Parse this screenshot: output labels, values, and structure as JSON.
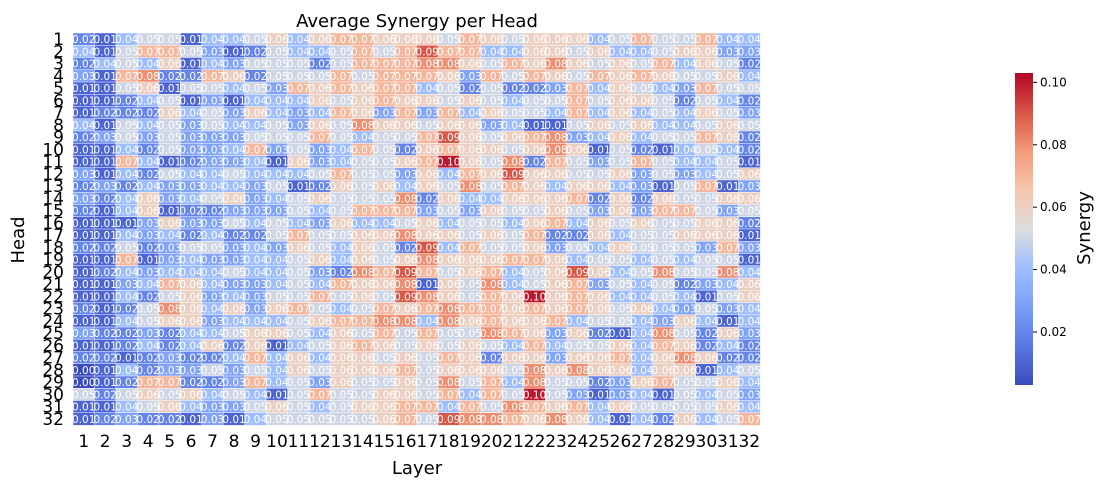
{
  "chart_data": {
    "type": "heatmap",
    "title": "Average Synergy per Head",
    "xlabel": "Layer",
    "ylabel": "Head",
    "colorbar_label": "Synergy",
    "colormap": "coolwarm",
    "vmin": 0.003,
    "vmax": 0.103,
    "colorbar_ticks": [
      "0.02",
      "0.04",
      "0.06",
      "0.08",
      "0.10"
    ],
    "colorbar_tick_values": [
      0.02,
      0.04,
      0.06,
      0.08,
      0.1
    ],
    "x_categories": [
      "1",
      "2",
      "3",
      "4",
      "5",
      "6",
      "7",
      "8",
      "9",
      "10",
      "11",
      "12",
      "13",
      "14",
      "15",
      "16",
      "17",
      "18",
      "19",
      "20",
      "21",
      "22",
      "23",
      "24",
      "25",
      "26",
      "27",
      "28",
      "29",
      "30",
      "31",
      "32"
    ],
    "y_categories": [
      "1",
      "2",
      "3",
      "4",
      "5",
      "6",
      "7",
      "8",
      "9",
      "10",
      "11",
      "12",
      "13",
      "14",
      "15",
      "16",
      "17",
      "18",
      "19",
      "20",
      "21",
      "22",
      "23",
      "24",
      "25",
      "26",
      "27",
      "28",
      "29",
      "30",
      "31",
      "32"
    ],
    "values": [
      [
        0.02,
        0.01,
        0.04,
        0.05,
        0.05,
        0.01,
        0.04,
        0.04,
        0.05,
        0.06,
        0.04,
        0.06,
        0.07,
        0.07,
        0.06,
        0.06,
        0.06,
        0.05,
        0.07,
        0.06,
        0.05,
        0.06,
        0.06,
        0.06,
        0.04,
        0.05,
        0.07,
        0.05,
        0.05,
        0.07,
        0.04,
        0.04
      ],
      [
        0.04,
        0.01,
        0.05,
        0.07,
        0.07,
        0.05,
        0.03,
        0.01,
        0.02,
        0.05,
        0.04,
        0.04,
        0.05,
        0.07,
        0.05,
        0.07,
        0.09,
        0.07,
        0.07,
        0.04,
        0.04,
        0.06,
        0.06,
        0.05,
        0.06,
        0.04,
        0.04,
        0.05,
        0.06,
        0.06,
        0.03,
        0.03
      ],
      [
        0.02,
        0.04,
        0.05,
        0.04,
        0.06,
        0.01,
        0.04,
        0.03,
        0.05,
        0.05,
        0.05,
        0.02,
        0.05,
        0.07,
        0.07,
        0.07,
        0.08,
        0.08,
        0.06,
        0.05,
        0.07,
        0.06,
        0.08,
        0.06,
        0.05,
        0.06,
        0.05,
        0.07,
        0.04,
        0.06,
        0.05,
        0.02
      ],
      [
        0.03,
        0.01,
        0.07,
        0.08,
        0.02,
        0.02,
        0.07,
        0.06,
        0.02,
        0.05,
        0.05,
        0.05,
        0.07,
        0.05,
        0.07,
        0.07,
        0.07,
        0.06,
        0.03,
        0.07,
        0.05,
        0.07,
        0.06,
        0.05,
        0.07,
        0.06,
        0.07,
        0.06,
        0.05,
        0.05,
        0.06,
        0.04
      ],
      [
        0.01,
        0.01,
        0.05,
        0.06,
        0.01,
        0.05,
        0.05,
        0.04,
        0.05,
        0.03,
        0.07,
        0.06,
        0.07,
        0.06,
        0.07,
        0.07,
        0.04,
        0.05,
        0.02,
        0.05,
        0.02,
        0.02,
        0.03,
        0.07,
        0.04,
        0.06,
        0.05,
        0.04,
        0.03,
        0.07,
        0.05,
        0.05
      ],
      [
        0.01,
        0.01,
        0.02,
        0.04,
        0.05,
        0.01,
        0.03,
        0.01,
        0.04,
        0.04,
        0.04,
        0.06,
        0.05,
        0.06,
        0.07,
        0.06,
        0.06,
        0.05,
        0.06,
        0.05,
        0.04,
        0.05,
        0.05,
        0.07,
        0.05,
        0.06,
        0.06,
        0.05,
        0.02,
        0.05,
        0.04,
        0.02
      ],
      [
        0.01,
        0.02,
        0.02,
        0.02,
        0.06,
        0.04,
        0.05,
        0.03,
        0.06,
        0.04,
        0.03,
        0.04,
        0.07,
        0.06,
        0.03,
        0.07,
        0.03,
        0.07,
        0.04,
        0.06,
        0.05,
        0.05,
        0.04,
        0.07,
        0.04,
        0.06,
        0.04,
        0.05,
        0.04,
        0.06,
        0.05,
        0.03
      ],
      [
        0.04,
        0.01,
        0.05,
        0.04,
        0.05,
        0.03,
        0.05,
        0.04,
        0.04,
        0.05,
        0.03,
        0.06,
        0.05,
        0.08,
        0.06,
        0.06,
        0.05,
        0.06,
        0.06,
        0.03,
        0.04,
        0.01,
        0.01,
        0.05,
        0.06,
        0.05,
        0.06,
        0.04,
        0.04,
        0.05,
        0.06,
        0.05
      ],
      [
        0.02,
        0.03,
        0.05,
        0.03,
        0.05,
        0.03,
        0.03,
        0.03,
        0.05,
        0.05,
        0.05,
        0.07,
        0.05,
        0.04,
        0.05,
        0.05,
        0.07,
        0.09,
        0.06,
        0.05,
        0.06,
        0.07,
        0.08,
        0.03,
        0.04,
        0.06,
        0.04,
        0.05,
        0.05,
        0.07,
        0.06,
        0.02
      ],
      [
        0.01,
        0.01,
        0.04,
        0.02,
        0.05,
        0.03,
        0.03,
        0.04,
        0.07,
        0.03,
        0.05,
        0.03,
        0.04,
        0.07,
        0.05,
        0.02,
        0.06,
        0.07,
        0.06,
        0.06,
        0.05,
        0.06,
        0.08,
        0.06,
        0.01,
        0.05,
        0.02,
        0.01,
        0.04,
        0.05,
        0.04,
        0.02
      ],
      [
        0.01,
        0.01,
        0.07,
        0.04,
        0.01,
        0.02,
        0.03,
        0.03,
        0.04,
        0.01,
        0.06,
        0.03,
        0.04,
        0.05,
        0.05,
        0.06,
        0.07,
        0.1,
        0.06,
        0.05,
        0.08,
        0.02,
        0.07,
        0.05,
        0.03,
        0.05,
        0.07,
        0.05,
        0.04,
        0.04,
        0.05,
        0.01
      ],
      [
        0.03,
        0.01,
        0.04,
        0.02,
        0.05,
        0.04,
        0.04,
        0.05,
        0.04,
        0.04,
        0.04,
        0.05,
        0.07,
        0.05,
        0.05,
        0.03,
        0.06,
        0.04,
        0.07,
        0.06,
        0.09,
        0.06,
        0.06,
        0.05,
        0.05,
        0.06,
        0.03,
        0.05,
        0.03,
        0.04,
        0.05,
        0.06
      ],
      [
        0.02,
        0.03,
        0.02,
        0.04,
        0.03,
        0.03,
        0.04,
        0.04,
        0.03,
        0.05,
        0.01,
        0.02,
        0.06,
        0.05,
        0.06,
        0.04,
        0.06,
        0.05,
        0.08,
        0.05,
        0.07,
        0.06,
        0.04,
        0.06,
        0.06,
        0.04,
        0.03,
        0.01,
        0.05,
        0.07,
        0.01,
        0.03
      ],
      [
        0.03,
        0.02,
        0.04,
        0.06,
        0.03,
        0.04,
        0.05,
        0.06,
        0.03,
        0.04,
        0.05,
        0.06,
        0.05,
        0.05,
        0.05,
        0.08,
        0.02,
        0.06,
        0.04,
        0.04,
        0.06,
        0.06,
        0.06,
        0.07,
        0.02,
        0.06,
        0.02,
        0.06,
        0.05,
        0.05,
        0.06,
        0.06
      ],
      [
        0.02,
        0.01,
        0.04,
        0.06,
        0.01,
        0.02,
        0.02,
        0.03,
        0.03,
        0.03,
        0.05,
        0.04,
        0.05,
        0.07,
        0.07,
        0.07,
        0.03,
        0.05,
        0.03,
        0.06,
        0.05,
        0.05,
        0.06,
        0.05,
        0.03,
        0.06,
        0.03,
        0.07,
        0.07,
        0.05,
        0.03,
        0.05
      ],
      [
        0.01,
        0.01,
        0.01,
        0.03,
        0.06,
        0.03,
        0.03,
        0.05,
        0.04,
        0.05,
        0.04,
        0.03,
        0.06,
        0.04,
        0.04,
        0.05,
        0.06,
        0.04,
        0.05,
        0.05,
        0.04,
        0.06,
        0.07,
        0.04,
        0.06,
        0.05,
        0.06,
        0.05,
        0.05,
        0.06,
        0.06,
        0.02
      ],
      [
        0.01,
        0.01,
        0.04,
        0.03,
        0.04,
        0.02,
        0.04,
        0.02,
        0.02,
        0.05,
        0.07,
        0.05,
        0.05,
        0.06,
        0.06,
        0.08,
        0.06,
        0.06,
        0.05,
        0.06,
        0.05,
        0.07,
        0.02,
        0.02,
        0.06,
        0.04,
        0.05,
        0.05,
        0.06,
        0.06,
        0.06,
        0.01
      ],
      [
        0.02,
        0.02,
        0.05,
        0.02,
        0.03,
        0.05,
        0.05,
        0.03,
        0.04,
        0.03,
        0.06,
        0.05,
        0.04,
        0.06,
        0.05,
        0.02,
        0.09,
        0.04,
        0.07,
        0.05,
        0.05,
        0.06,
        0.03,
        0.05,
        0.04,
        0.06,
        0.05,
        0.05,
        0.05,
        0.03,
        0.07,
        0.03
      ],
      [
        0.01,
        0.01,
        0.07,
        0.01,
        0.03,
        0.04,
        0.03,
        0.03,
        0.04,
        0.04,
        0.05,
        0.06,
        0.04,
        0.06,
        0.05,
        0.06,
        0.08,
        0.06,
        0.06,
        0.06,
        0.07,
        0.07,
        0.06,
        0.04,
        0.05,
        0.05,
        0.04,
        0.05,
        0.04,
        0.05,
        0.05,
        0.01
      ],
      [
        0.01,
        0.02,
        0.04,
        0.03,
        0.04,
        0.04,
        0.04,
        0.05,
        0.04,
        0.04,
        0.05,
        0.03,
        0.02,
        0.08,
        0.07,
        0.09,
        0.07,
        0.05,
        0.06,
        0.07,
        0.04,
        0.05,
        0.06,
        0.09,
        0.06,
        0.04,
        0.05,
        0.08,
        0.05,
        0.05,
        0.08,
        0.04
      ],
      [
        0.01,
        0.01,
        0.03,
        0.04,
        0.07,
        0.06,
        0.04,
        0.03,
        0.03,
        0.04,
        0.05,
        0.04,
        0.07,
        0.06,
        0.06,
        0.08,
        0.01,
        0.06,
        0.05,
        0.08,
        0.04,
        0.05,
        0.06,
        0.07,
        0.03,
        0.05,
        0.04,
        0.05,
        0.02,
        0.03,
        0.04,
        0.06
      ],
      [
        0.01,
        0.01,
        0.04,
        0.02,
        0.05,
        0.06,
        0.03,
        0.04,
        0.03,
        0.05,
        0.05,
        0.07,
        0.05,
        0.06,
        0.05,
        0.09,
        0.08,
        0.06,
        0.05,
        0.07,
        0.06,
        0.1,
        0.06,
        0.07,
        0.06,
        0.04,
        0.04,
        0.05,
        0.04,
        0.01,
        0.05,
        0.06
      ],
      [
        0.02,
        0.01,
        0.02,
        0.05,
        0.08,
        0.06,
        0.04,
        0.06,
        0.03,
        0.06,
        0.07,
        0.05,
        0.04,
        0.05,
        0.07,
        0.06,
        0.07,
        0.08,
        0.07,
        0.07,
        0.06,
        0.07,
        0.06,
        0.07,
        0.06,
        0.05,
        0.06,
        0.04,
        0.03,
        0.05,
        0.03,
        0.04
      ],
      [
        0.01,
        0.01,
        0.04,
        0.05,
        0.06,
        0.06,
        0.03,
        0.04,
        0.04,
        0.04,
        0.05,
        0.06,
        0.07,
        0.07,
        0.08,
        0.08,
        0.04,
        0.08,
        0.06,
        0.07,
        0.06,
        0.06,
        0.07,
        0.04,
        0.05,
        0.05,
        0.04,
        0.03,
        0.06,
        0.04,
        0.01,
        0.04
      ],
      [
        0.03,
        0.02,
        0.02,
        0.03,
        0.02,
        0.04,
        0.04,
        0.05,
        0.06,
        0.06,
        0.05,
        0.04,
        0.06,
        0.05,
        0.07,
        0.05,
        0.07,
        0.05,
        0.05,
        0.08,
        0.07,
        0.06,
        0.03,
        0.06,
        0.02,
        0.01,
        0.04,
        0.08,
        0.05,
        0.02,
        0.06,
        0.03
      ],
      [
        0.01,
        0.01,
        0.02,
        0.04,
        0.02,
        0.04,
        0.06,
        0.02,
        0.06,
        0.01,
        0.04,
        0.05,
        0.06,
        0.07,
        0.06,
        0.05,
        0.06,
        0.05,
        0.06,
        0.05,
        0.04,
        0.07,
        0.04,
        0.05,
        0.05,
        0.06,
        0.04,
        0.07,
        0.06,
        0.02,
        0.04,
        0.02
      ],
      [
        0.02,
        0.02,
        0.01,
        0.02,
        0.03,
        0.02,
        0.02,
        0.04,
        0.07,
        0.04,
        0.06,
        0.04,
        0.06,
        0.06,
        0.05,
        0.06,
        0.05,
        0.07,
        0.06,
        0.02,
        0.06,
        0.06,
        0.03,
        0.06,
        0.06,
        0.07,
        0.04,
        0.06,
        0.08,
        0.06,
        0.02,
        0.02
      ],
      [
        0.0,
        0.01,
        0.04,
        0.02,
        0.03,
        0.03,
        0.05,
        0.03,
        0.05,
        0.04,
        0.06,
        0.05,
        0.06,
        0.06,
        0.06,
        0.07,
        0.05,
        0.06,
        0.06,
        0.06,
        0.05,
        0.08,
        0.06,
        0.08,
        0.06,
        0.06,
        0.04,
        0.06,
        0.06,
        0.01,
        0.04,
        0.05
      ],
      [
        0.0,
        0.01,
        0.02,
        0.07,
        0.07,
        0.02,
        0.02,
        0.03,
        0.07,
        0.04,
        0.05,
        0.03,
        0.06,
        0.05,
        0.05,
        0.06,
        0.05,
        0.08,
        0.05,
        0.07,
        0.04,
        0.08,
        0.05,
        0.05,
        0.02,
        0.03,
        0.06,
        0.07,
        0.05,
        0.05,
        0.06,
        0.04
      ],
      [
        0.05,
        0.02,
        0.05,
        0.06,
        0.05,
        0.06,
        0.04,
        0.05,
        0.04,
        0.01,
        0.05,
        0.07,
        0.05,
        0.05,
        0.06,
        0.06,
        0.05,
        0.07,
        0.04,
        0.07,
        0.05,
        0.1,
        0.05,
        0.03,
        0.01,
        0.03,
        0.04,
        0.01,
        0.05,
        0.04,
        0.05,
        0.03
      ],
      [
        0.01,
        0.01,
        0.04,
        0.05,
        0.06,
        0.04,
        0.03,
        0.03,
        0.05,
        0.06,
        0.05,
        0.04,
        0.05,
        0.06,
        0.06,
        0.07,
        0.07,
        0.04,
        0.07,
        0.05,
        0.08,
        0.07,
        0.06,
        0.07,
        0.04,
        0.06,
        0.05,
        0.05,
        0.05,
        0.05,
        0.06,
        0.04
      ],
      [
        0.01,
        0.02,
        0.03,
        0.02,
        0.02,
        0.01,
        0.03,
        0.01,
        0.04,
        0.05,
        0.05,
        0.05,
        0.05,
        0.05,
        0.06,
        0.07,
        0.05,
        0.09,
        0.08,
        0.08,
        0.07,
        0.06,
        0.08,
        0.06,
        0.04,
        0.01,
        0.04,
        0.02,
        0.06,
        0.04,
        0.05,
        0.07
      ]
    ]
  }
}
